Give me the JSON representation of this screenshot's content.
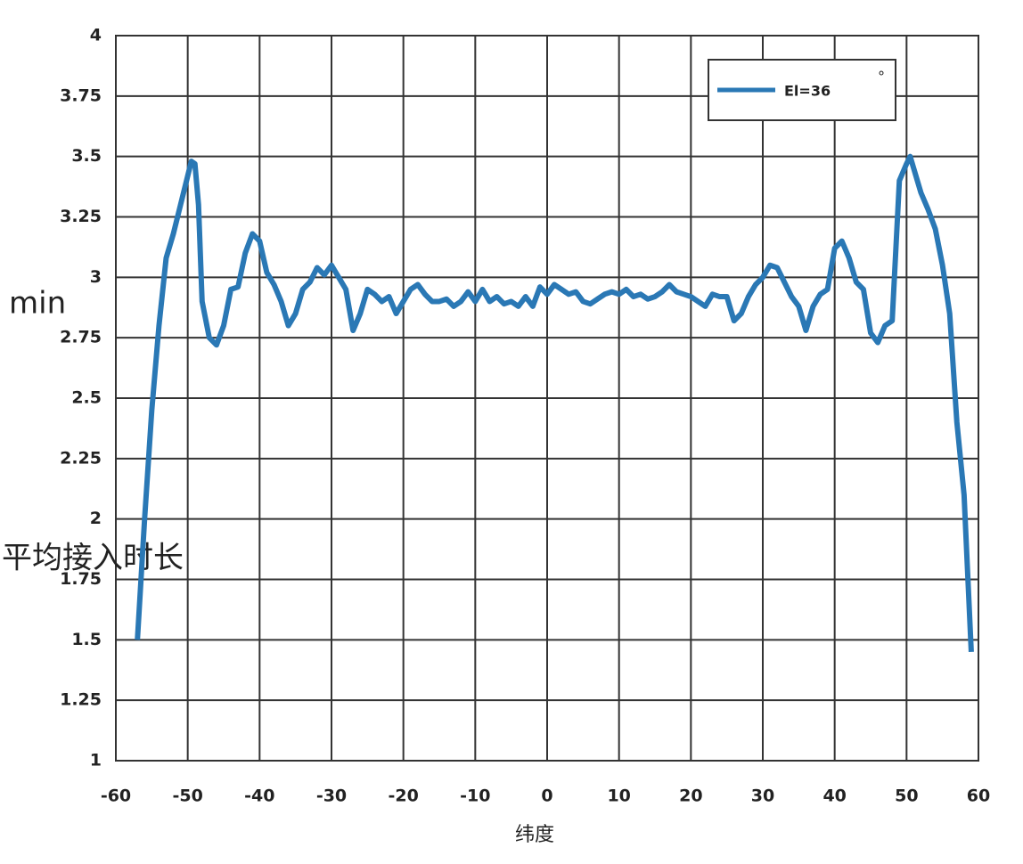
{
  "chart_data": {
    "type": "line",
    "y_label_unit": "min",
    "y_label": "平均接入时长",
    "x_label": "纬度",
    "legend_note": "°",
    "xlim": [
      -60,
      60
    ],
    "xticks": [
      -60,
      -50,
      -40,
      -30,
      -20,
      -10,
      0,
      10,
      20,
      30,
      40,
      50,
      60
    ],
    "ylim": [
      1,
      4
    ],
    "yticks": [
      1,
      1.25,
      1.5,
      1.75,
      2,
      2.25,
      2.5,
      2.75,
      3,
      3.25,
      3.5,
      3.75,
      4
    ],
    "grid": true,
    "legend": "upper right",
    "x": [
      -57,
      -56,
      -55,
      -54,
      -53,
      -52,
      -51,
      -50,
      -49.5,
      -49,
      -48.5,
      -48,
      -47,
      -46,
      -45,
      -44,
      -43,
      -42,
      -41,
      -40,
      -39,
      -38,
      -37,
      -36,
      -35,
      -34,
      -33,
      -32,
      -31,
      -30,
      -29,
      -28,
      -27,
      -26,
      -25,
      -24,
      -23,
      -22,
      -21,
      -20,
      -19,
      -18,
      -17,
      -16,
      -15,
      -14,
      -13,
      -12,
      -11,
      -10,
      -9,
      -8,
      -7,
      -6,
      -5,
      -4,
      -3,
      -2,
      -1,
      0,
      1,
      2,
      3,
      4,
      5,
      6,
      7,
      8,
      9,
      10,
      11,
      12,
      13,
      14,
      15,
      16,
      17,
      18,
      19,
      20,
      21,
      22,
      23,
      24,
      25,
      26,
      27,
      28,
      29,
      30,
      31,
      32,
      33,
      34,
      35,
      36,
      37,
      38,
      39,
      40,
      41,
      42,
      43,
      44,
      45,
      46,
      47,
      48,
      49,
      50,
      50.5,
      51,
      52,
      53,
      54,
      55,
      56,
      57,
      58,
      59
    ],
    "series": [
      {
        "name": "El=36",
        "color": "#2a78b5",
        "values": [
          1.5,
          2.0,
          2.45,
          2.8,
          3.08,
          3.18,
          3.3,
          3.42,
          3.48,
          3.47,
          3.3,
          2.9,
          2.75,
          2.72,
          2.8,
          2.95,
          2.96,
          3.1,
          3.18,
          3.15,
          3.02,
          2.97,
          2.9,
          2.8,
          2.85,
          2.95,
          2.98,
          3.04,
          3.01,
          3.05,
          3.0,
          2.95,
          2.78,
          2.85,
          2.95,
          2.93,
          2.9,
          2.92,
          2.85,
          2.9,
          2.95,
          2.97,
          2.93,
          2.9,
          2.9,
          2.91,
          2.88,
          2.9,
          2.94,
          2.9,
          2.95,
          2.9,
          2.92,
          2.89,
          2.9,
          2.88,
          2.92,
          2.88,
          2.96,
          2.93,
          2.97,
          2.95,
          2.93,
          2.94,
          2.9,
          2.89,
          2.91,
          2.93,
          2.94,
          2.93,
          2.95,
          2.92,
          2.93,
          2.91,
          2.92,
          2.94,
          2.97,
          2.94,
          2.93,
          2.92,
          2.9,
          2.88,
          2.93,
          2.92,
          2.92,
          2.82,
          2.85,
          2.92,
          2.97,
          3.0,
          3.05,
          3.04,
          2.98,
          2.92,
          2.88,
          2.78,
          2.88,
          2.93,
          2.95,
          3.12,
          3.15,
          3.08,
          2.98,
          2.95,
          2.77,
          2.73,
          2.8,
          2.82,
          3.4,
          3.47,
          3.5,
          3.45,
          3.35,
          3.28,
          3.2,
          3.05,
          2.85,
          2.4,
          2.1,
          1.45
        ]
      }
    ]
  }
}
